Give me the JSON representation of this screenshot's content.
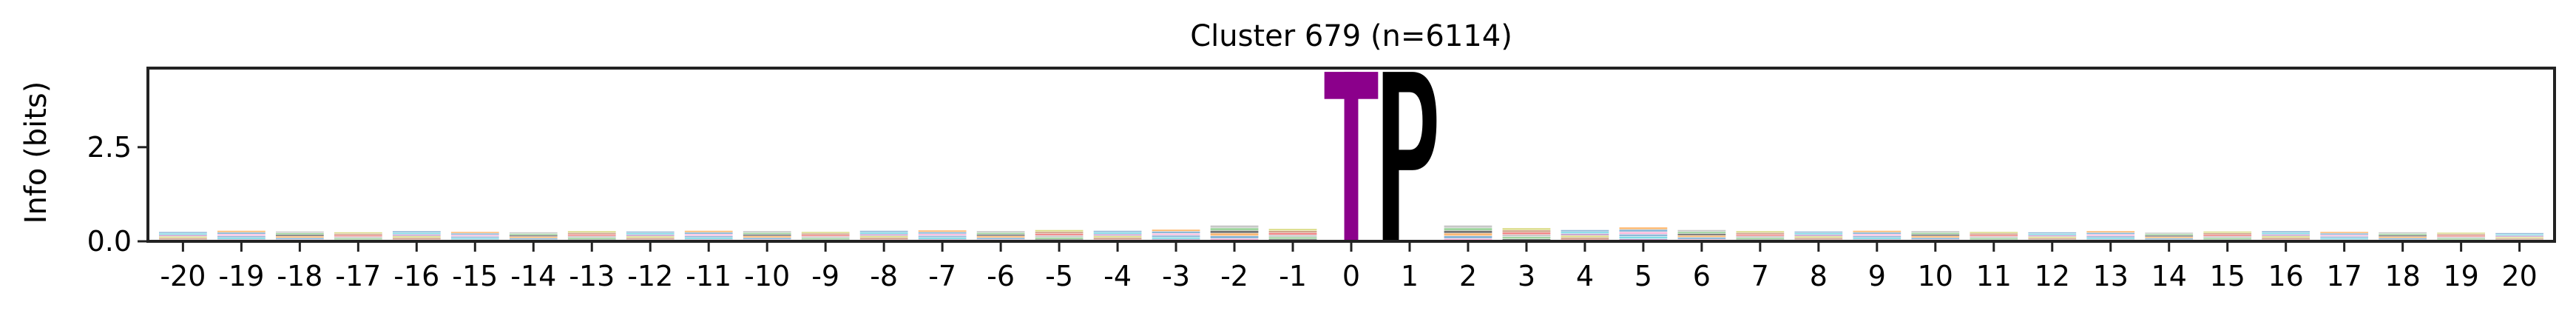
{
  "chart_data": {
    "type": "sequence-logo",
    "title": "Cluster 679 (n=6114)",
    "xlabel": "",
    "ylabel": "Info (bits)",
    "ylim": [
      0,
      4.6
    ],
    "yticks": [
      0.0,
      2.5
    ],
    "ytick_labels": [
      "0.0",
      "2.5"
    ],
    "positions": [
      -20,
      -19,
      -18,
      -17,
      -16,
      -15,
      -14,
      -13,
      -12,
      -11,
      -10,
      -9,
      -8,
      -7,
      -6,
      -5,
      -4,
      -3,
      -2,
      -1,
      0,
      1,
      2,
      3,
      4,
      5,
      6,
      7,
      8,
      9,
      10,
      11,
      12,
      13,
      14,
      15,
      16,
      17,
      18,
      19,
      20
    ],
    "position_labels": [
      "-20",
      "-19",
      "-18",
      "-17",
      "-16",
      "-15",
      "-14",
      "-13",
      "-12",
      "-11",
      "-10",
      "-9",
      "-8",
      "-7",
      "-6",
      "-5",
      "-4",
      "-3",
      "-2",
      "-1",
      "0",
      "1",
      "2",
      "3",
      "4",
      "5",
      "6",
      "7",
      "8",
      "9",
      "10",
      "11",
      "12",
      "13",
      "14",
      "15",
      "16",
      "17",
      "18",
      "19",
      "20"
    ],
    "background_info_bits": [
      0.25,
      0.28,
      0.26,
      0.24,
      0.27,
      0.25,
      0.24,
      0.27,
      0.26,
      0.28,
      0.27,
      0.25,
      0.28,
      0.29,
      0.27,
      0.3,
      0.28,
      0.31,
      0.42,
      0.33,
      0,
      0,
      0.42,
      0.35,
      0.3,
      0.37,
      0.3,
      0.27,
      0.26,
      0.28,
      0.27,
      0.25,
      0.24,
      0.27,
      0.23,
      0.26,
      0.27,
      0.25,
      0.24,
      0.23,
      0.22
    ],
    "dominant_residues": [
      {
        "position": 0,
        "letter": "T",
        "bits": 4.5,
        "color": "#8b008b"
      },
      {
        "position": 1,
        "letter": "P",
        "bits": 4.5,
        "color": "#000000"
      }
    ],
    "grid": false,
    "legend": "none"
  }
}
